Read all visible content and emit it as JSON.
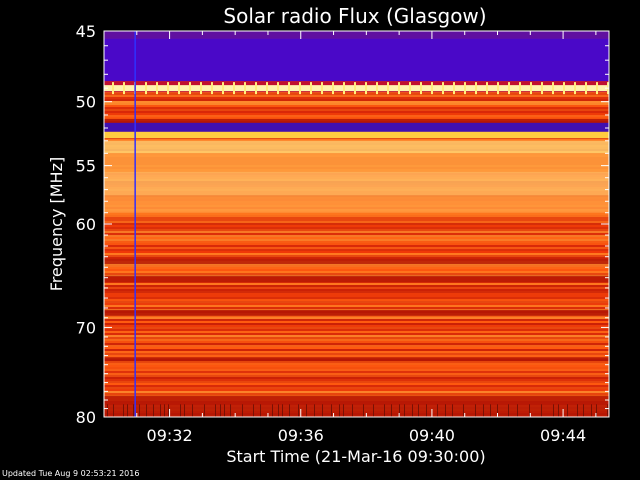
{
  "chart_data": {
    "type": "heatmap",
    "title": "Solar radio Flux (Glasgow)",
    "xlabel": "Start Time (21-Mar-16 09:30:00)",
    "ylabel": "Frequency [MHz]",
    "x_range_minutes": [
      0,
      15.4
    ],
    "x_tick_minutes": [
      2,
      6,
      10,
      14
    ],
    "x_tick_labels": [
      "09:32",
      "09:36",
      "09:40",
      "09:44"
    ],
    "y_range_mhz": [
      45,
      80
    ],
    "y_ticks": [
      45,
      50,
      55,
      60,
      70,
      80
    ],
    "y_scale": "log",
    "colormap": "red-yellow (hot), purple/blue = low",
    "features": {
      "low_flux_band_mhz": [
        45.5,
        48.5
      ],
      "bright_line_mhz": 49.0,
      "vertical_line_minute": 0.95,
      "vertical_line_color": "#3030ff"
    }
  },
  "footer": {
    "updated": "Updated Tue Aug  9 02:53:21 2016"
  },
  "colors": {
    "background": "#000000",
    "axis": "#ffffff"
  }
}
